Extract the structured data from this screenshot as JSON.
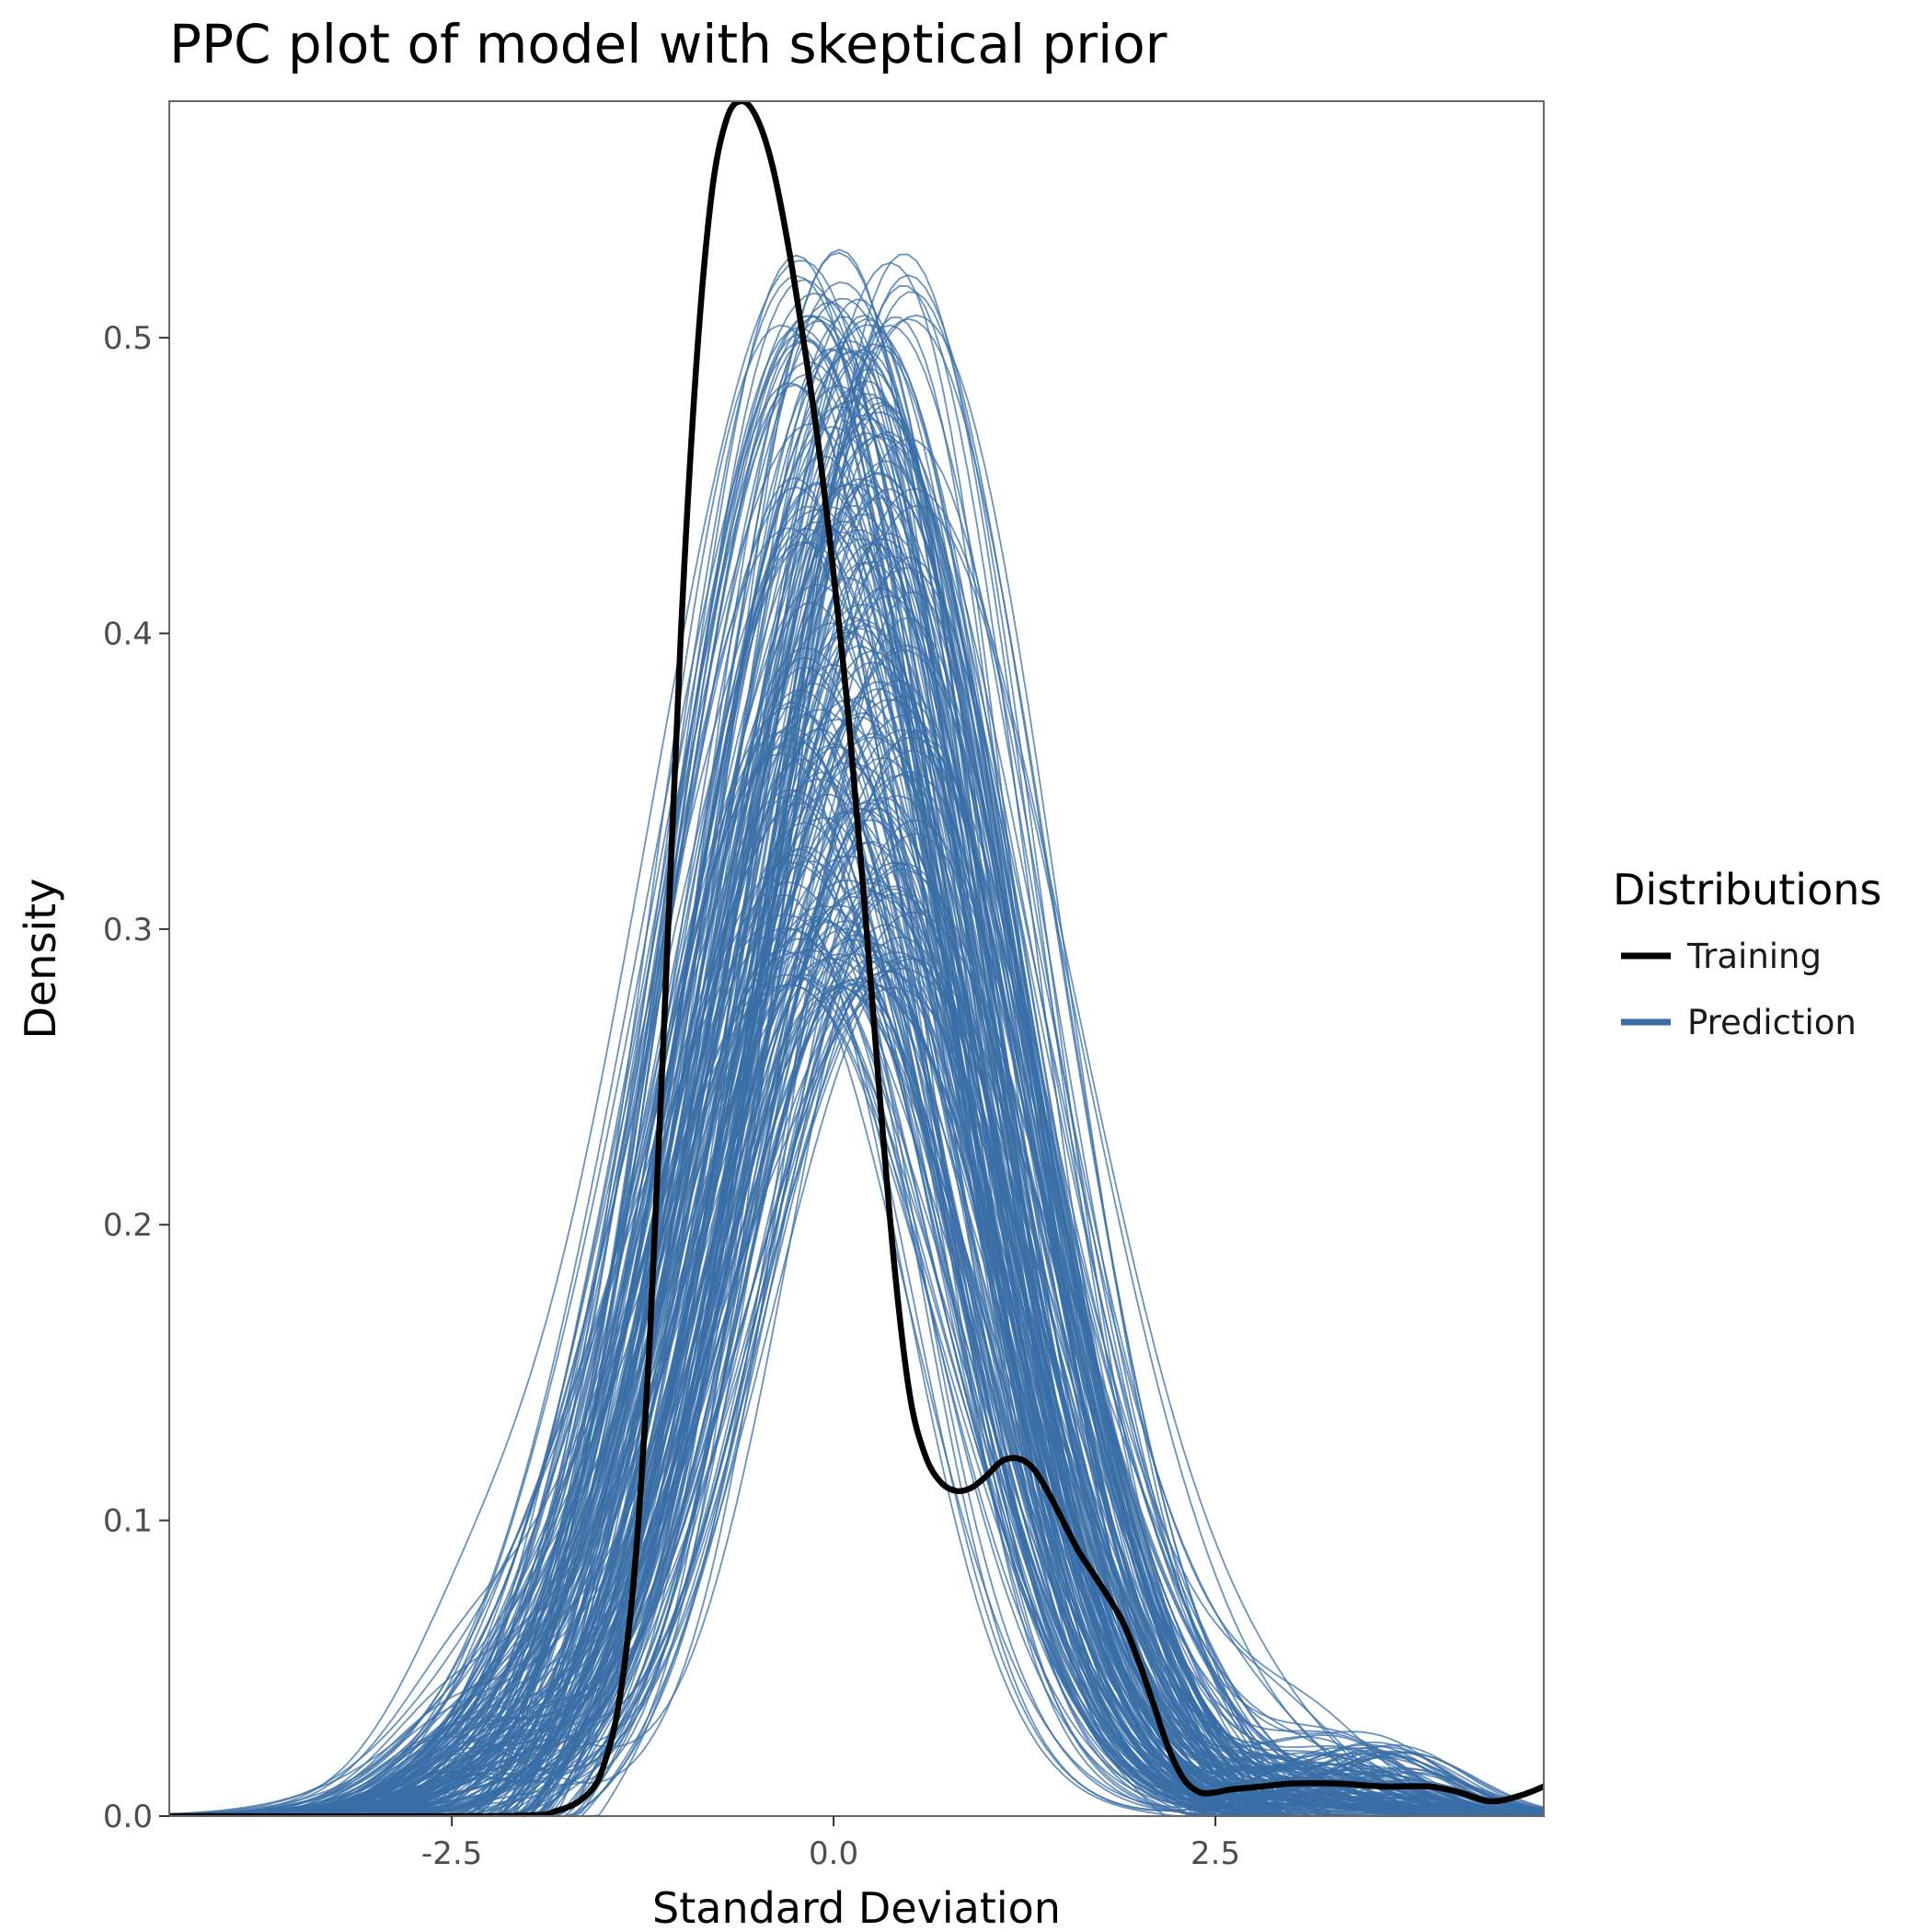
{
  "chart_data": {
    "type": "line",
    "title": "PPC plot of model with skeptical prior",
    "xlabel": "Standard Deviation",
    "ylabel": "Density",
    "xlim": [
      -4.35,
      4.65
    ],
    "ylim": [
      0,
      0.58
    ],
    "x_ticks": [
      -2.5,
      0.0,
      2.5
    ],
    "x_tick_labels": [
      "-2.5",
      "0.0",
      "2.5"
    ],
    "y_ticks": [
      0.0,
      0.1,
      0.2,
      0.3,
      0.4,
      0.5
    ],
    "y_tick_labels": [
      "0.0",
      "0.1",
      "0.2",
      "0.3",
      "0.4",
      "0.5"
    ],
    "grid": false,
    "legend": {
      "title": "Distributions",
      "position": "right",
      "entries": [
        {
          "label": "Training",
          "color": "#000000"
        },
        {
          "label": "Prediction",
          "color": "#3a6ea5"
        }
      ]
    },
    "colors": {
      "training": "#000000",
      "prediction": "#3a6ea5",
      "frame": "#555555"
    },
    "series": [
      {
        "name": "Training",
        "x": [
          -4.35,
          -2.2,
          -1.8,
          -1.6,
          -1.5,
          -1.4,
          -1.3,
          -1.2,
          -1.1,
          -1.0,
          -0.9,
          -0.8,
          -0.7,
          -0.6,
          -0.5,
          -0.4,
          -0.3,
          -0.2,
          -0.1,
          0.0,
          0.1,
          0.2,
          0.3,
          0.4,
          0.5,
          0.6,
          0.7,
          0.8,
          0.9,
          1.0,
          1.1,
          1.2,
          1.3,
          1.4,
          1.5,
          1.6,
          1.7,
          1.8,
          1.9,
          2.0,
          2.1,
          2.2,
          2.3,
          2.4,
          2.5,
          2.6,
          2.8,
          3.0,
          3.3,
          3.6,
          3.9,
          4.1,
          4.3,
          4.5,
          4.65
        ],
        "values": [
          0.0,
          0.0,
          0.002,
          0.008,
          0.018,
          0.04,
          0.085,
          0.165,
          0.28,
          0.4,
          0.49,
          0.548,
          0.574,
          0.58,
          0.574,
          0.558,
          0.532,
          0.5,
          0.464,
          0.42,
          0.37,
          0.31,
          0.245,
          0.185,
          0.142,
          0.122,
          0.113,
          0.11,
          0.111,
          0.115,
          0.12,
          0.121,
          0.118,
          0.11,
          0.1,
          0.09,
          0.082,
          0.074,
          0.065,
          0.052,
          0.037,
          0.022,
          0.012,
          0.008,
          0.008,
          0.009,
          0.01,
          0.011,
          0.011,
          0.01,
          0.01,
          0.008,
          0.005,
          0.007,
          0.01
        ]
      },
      {
        "name": "Prediction",
        "curves": 250,
        "distribution": "approximately normal",
        "center_range": [
          -0.35,
          0.55
        ],
        "sd_range": [
          0.78,
          1.05
        ],
        "peak_range": [
          0.28,
          0.53
        ]
      }
    ]
  }
}
